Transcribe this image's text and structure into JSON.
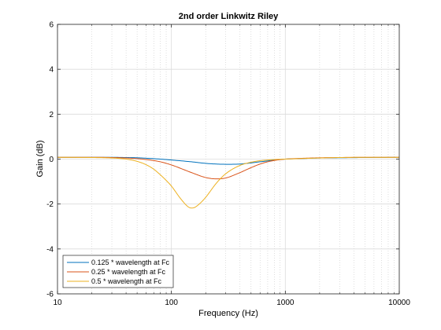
{
  "chart_data": {
    "type": "line",
    "title": "2nd order Linkwitz Riley",
    "xlabel": "Frequency (Hz)",
    "ylabel": "Gain (dB)",
    "xscale": "log",
    "xlim": [
      10,
      10000
    ],
    "ylim": [
      -6,
      6
    ],
    "xticks": [
      10,
      100,
      1000,
      10000
    ],
    "xtick_labels": [
      "10",
      "100",
      "1000",
      "10000"
    ],
    "yticks": [
      -6,
      -4,
      -2,
      0,
      2,
      4,
      6
    ],
    "ytick_labels": [
      "-6",
      "-4",
      "-2",
      "0",
      "2",
      "4",
      "6"
    ],
    "grid": true,
    "legend_location": "bottom-left",
    "series": [
      {
        "name": "0.125 * wavelength at Fc",
        "color": "#0072BD",
        "x": [
          10,
          20,
          30,
          40,
          50,
          60,
          80,
          100,
          150,
          200,
          250,
          300,
          400,
          500,
          600,
          700,
          800,
          1000,
          1500,
          2000,
          3000,
          5000,
          10000
        ],
        "y": [
          0.08,
          0.08,
          0.08,
          0.07,
          0.06,
          0.04,
          0.0,
          -0.04,
          -0.12,
          -0.19,
          -0.22,
          -0.23,
          -0.22,
          -0.17,
          -0.12,
          -0.08,
          -0.04,
          0.0,
          0.03,
          0.05,
          0.06,
          0.07,
          0.08
        ]
      },
      {
        "name": "0.25 * wavelength at Fc",
        "color": "#D95319",
        "x": [
          10,
          20,
          30,
          40,
          50,
          60,
          80,
          100,
          150,
          200,
          250,
          300,
          400,
          500,
          600,
          700,
          800,
          1000,
          1500,
          2000,
          3000,
          5000,
          10000
        ],
        "y": [
          0.08,
          0.08,
          0.07,
          0.05,
          0.02,
          -0.02,
          -0.12,
          -0.26,
          -0.6,
          -0.82,
          -0.88,
          -0.84,
          -0.6,
          -0.38,
          -0.22,
          -0.12,
          -0.06,
          0.0,
          0.04,
          0.06,
          0.07,
          0.08,
          0.08
        ]
      },
      {
        "name": "0.5 * wavelength at Fc",
        "color": "#EDB120",
        "x": [
          10,
          20,
          30,
          40,
          50,
          60,
          70,
          80,
          90,
          100,
          120,
          140,
          150,
          160,
          180,
          200,
          250,
          300,
          400,
          500,
          600,
          700,
          800,
          1000,
          1500,
          2000,
          3000,
          5000,
          10000
        ],
        "y": [
          0.08,
          0.07,
          0.05,
          0.0,
          -0.1,
          -0.25,
          -0.45,
          -0.7,
          -0.95,
          -1.2,
          -1.75,
          -2.12,
          -2.18,
          -2.15,
          -1.95,
          -1.7,
          -1.05,
          -0.65,
          -0.28,
          -0.14,
          -0.07,
          -0.04,
          -0.02,
          0.0,
          0.03,
          0.05,
          0.07,
          0.08,
          0.08
        ]
      }
    ]
  }
}
